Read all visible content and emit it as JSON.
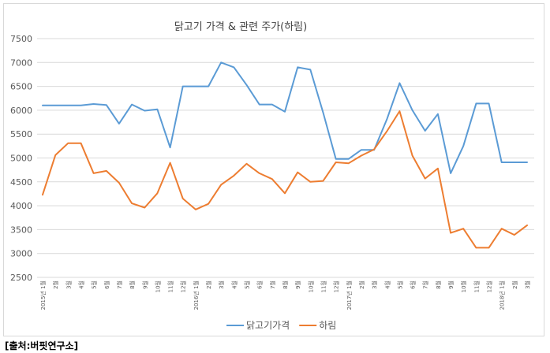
{
  "chart_data": {
    "type": "line",
    "title": "닭고기 가격 & 관련 주가(하림)",
    "xlabel": "",
    "ylabel": "",
    "ylim": [
      2500,
      7500
    ],
    "yticks": [
      7500,
      7000,
      6500,
      6000,
      5500,
      5000,
      4500,
      4000,
      3500,
      3000,
      2500
    ],
    "grid": "horizontal",
    "legend_position": "bottom",
    "categories": [
      "2015년 1월",
      "2월",
      "3월",
      "4월",
      "5월",
      "6월",
      "7월",
      "8월",
      "9월",
      "10월",
      "11월",
      "12월",
      "2016년 1월",
      "2월",
      "3월",
      "4월",
      "5월",
      "6월",
      "7월",
      "8월",
      "9월",
      "10월",
      "11월",
      "12월",
      "2017년 1월",
      "2월",
      "3월",
      "4월",
      "5월",
      "6월",
      "7월",
      "8월",
      "9월",
      "10월",
      "11월",
      "12월",
      "2018년 1월",
      "2월",
      "3월"
    ],
    "series": [
      {
        "name": "닭고기가격",
        "color": "#5b9bd5",
        "values": [
          6100,
          6100,
          6100,
          6100,
          6130,
          6110,
          5720,
          6120,
          5990,
          6020,
          5220,
          6500,
          6500,
          6500,
          7000,
          6900,
          6530,
          6120,
          6120,
          5970,
          6900,
          6850,
          5950,
          4980,
          4980,
          5170,
          5170,
          5810,
          6570,
          6000,
          5570,
          5920,
          4680,
          5250,
          6140,
          6140,
          4910,
          4910,
          4910
        ]
      },
      {
        "name": "하림",
        "color": "#ed7d31",
        "values": [
          4230,
          5060,
          5310,
          5310,
          4680,
          4730,
          4480,
          4050,
          3960,
          4260,
          4900,
          4150,
          3920,
          4040,
          4440,
          4630,
          4880,
          4680,
          4560,
          4260,
          4700,
          4500,
          4520,
          4910,
          4890,
          5050,
          5180,
          5560,
          5980,
          5050,
          4570,
          4780,
          3430,
          3520,
          3120,
          3120,
          3520,
          3390,
          3590
        ]
      }
    ]
  },
  "source_note": "[출처:버핏연구소]"
}
